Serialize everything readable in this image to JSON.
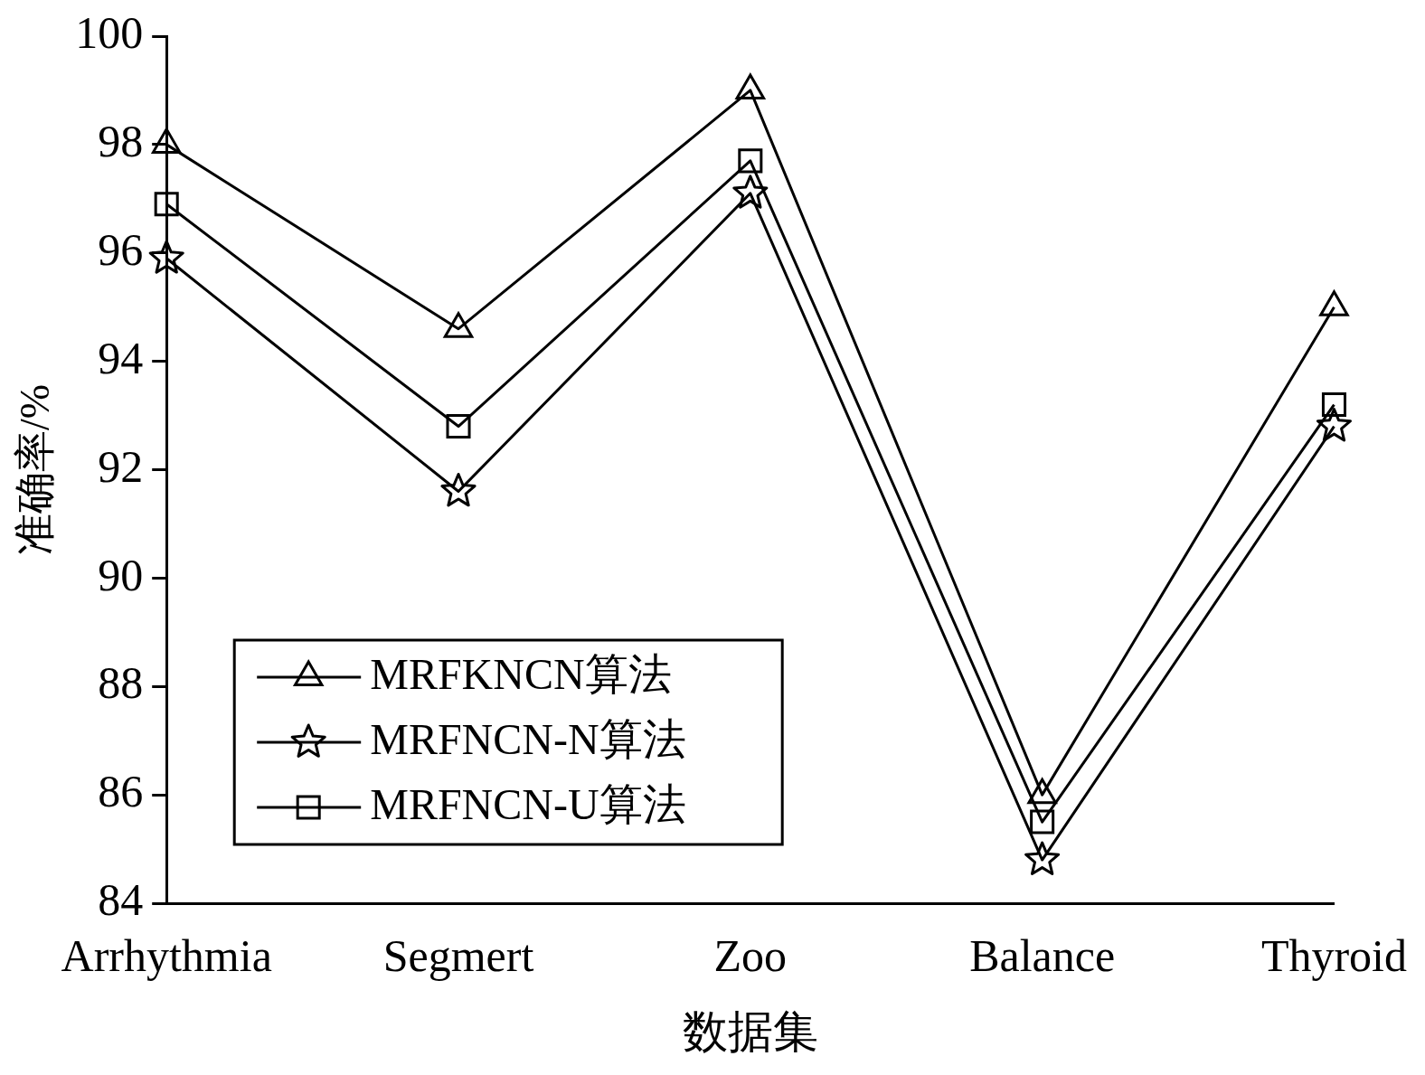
{
  "chart_data": {
    "type": "line",
    "xlabel": "数据集",
    "ylabel": "准确率/%",
    "categories": [
      "Arrhythmia",
      "Segmert",
      "Zoo",
      "Balance",
      "Thyroid"
    ],
    "series": [
      {
        "name": "MRFKNCN算法",
        "color": "#000000",
        "marker": "triangle",
        "values": [
          98.0,
          94.6,
          99.0,
          86.0,
          95.0
        ]
      },
      {
        "name": "MRFNCN-N算法",
        "color": "#000000",
        "marker": "star",
        "values": [
          95.9,
          91.6,
          97.1,
          84.8,
          92.8
        ]
      },
      {
        "name": "MRFNCN-U算法",
        "color": "#000000",
        "marker": "square",
        "values": [
          96.9,
          92.8,
          97.7,
          85.5,
          93.2
        ]
      }
    ],
    "ylim": [
      84,
      100
    ],
    "yticks": [
      84,
      86,
      88,
      90,
      92,
      94,
      96,
      98,
      100
    ],
    "grid": false,
    "legend": "bottom left",
    "line_style": "solid"
  }
}
